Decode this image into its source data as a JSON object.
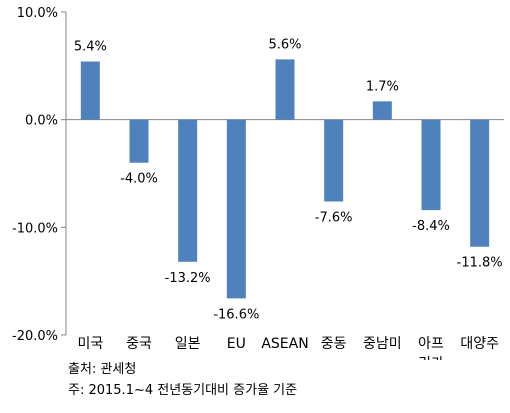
{
  "chart_data": {
    "type": "bar",
    "categories": [
      [
        "미국"
      ],
      [
        "중국"
      ],
      [
        "일본"
      ],
      [
        "EU"
      ],
      [
        "ASEAN"
      ],
      [
        "중동"
      ],
      [
        "중남미"
      ],
      [
        "아프",
        "리카"
      ],
      [
        "대양주"
      ]
    ],
    "values": [
      5.4,
      -4.0,
      -13.2,
      -16.6,
      5.6,
      -7.6,
      1.7,
      -8.4,
      -11.8
    ],
    "data_labels": [
      "5.4%",
      "-4.0%",
      "-13.2%",
      "-16.6%",
      "5.6%",
      "-7.6%",
      "1.7%",
      "-8.4%",
      "-11.8%"
    ],
    "y_ticks": [
      10,
      0,
      -10,
      -20
    ],
    "y_tick_labels": [
      "10.0%",
      "0.0%",
      "-10.0%",
      "-20.0%"
    ],
    "ylim": [
      -20,
      10
    ],
    "grid": false,
    "bar_color": "#4F81BD",
    "axis_color": "#868686"
  },
  "notes": {
    "source": "출처: 관세청",
    "footnote": "주: 2015.1~4 전년동기대비 증가율 기준"
  }
}
